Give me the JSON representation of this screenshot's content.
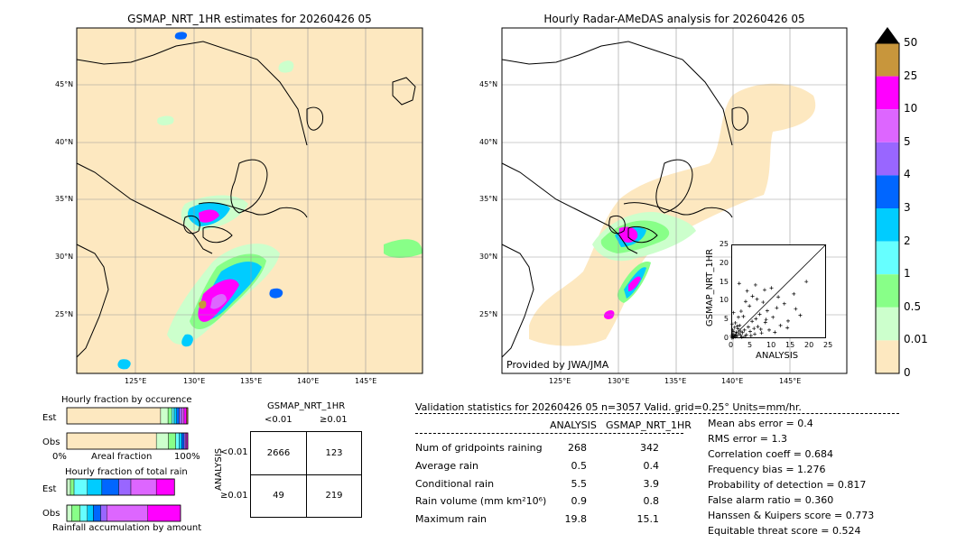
{
  "left_map": {
    "title": "GSMAP_NRT_1HR estimates for 20260426 05",
    "lat_labels": [
      "45°N",
      "40°N",
      "35°N",
      "30°N",
      "25°N"
    ],
    "lon_labels": [
      "125°E",
      "130°E",
      "135°E",
      "140°E",
      "145°E"
    ]
  },
  "right_map": {
    "title": "Hourly Radar-AMeDAS analysis for 20260426 05",
    "lat_labels": [
      "45°N",
      "40°N",
      "35°N",
      "30°N",
      "25°N"
    ],
    "lon_labels": [
      "125°E",
      "130°E",
      "135°E",
      "140°E",
      "145°E"
    ],
    "credit": "Provided by JWA/JMA"
  },
  "colorbar": {
    "labels": [
      "50",
      "25",
      "10",
      "5",
      "4",
      "3",
      "2",
      "1",
      "0.5",
      "0.01",
      "0"
    ],
    "colors": [
      "#c8963c",
      "#ff00ff",
      "#dd66ff",
      "#9966ff",
      "#0066ff",
      "#00ccff",
      "#66ffff",
      "#88ff88",
      "#ccffcc",
      "#fde8c0"
    ]
  },
  "chart_data": [
    {
      "type": "scatter",
      "xlabel": "ANALYSIS",
      "ylabel": "GSMAP_NRT_1HR",
      "xlim": [
        0,
        25
      ],
      "ylim": [
        0,
        25
      ],
      "xticks": [
        "0",
        "5",
        "10",
        "15",
        "20",
        "25"
      ],
      "yticks": [
        "0",
        "5",
        "10",
        "15",
        "20",
        "25"
      ],
      "points": [
        [
          0.2,
          0.1
        ],
        [
          0.4,
          0.3
        ],
        [
          0.6,
          0.2
        ],
        [
          0.8,
          0.5
        ],
        [
          1.0,
          0.4
        ],
        [
          1.2,
          0.9
        ],
        [
          0.3,
          1.1
        ],
        [
          0.5,
          1.8
        ],
        [
          1.5,
          0.6
        ],
        [
          2.0,
          1.2
        ],
        [
          2.5,
          0.8
        ],
        [
          1.8,
          2.5
        ],
        [
          3.0,
          1.5
        ],
        [
          3.5,
          2.2
        ],
        [
          4.0,
          0.9
        ],
        [
          2.2,
          3.4
        ],
        [
          1.1,
          4.1
        ],
        [
          4.5,
          3.0
        ],
        [
          5.0,
          1.8
        ],
        [
          5.5,
          4.5
        ],
        [
          6.0,
          2.6
        ],
        [
          3.2,
          5.8
        ],
        [
          2.6,
          7.2
        ],
        [
          6.5,
          5.2
        ],
        [
          7.0,
          3.1
        ],
        [
          7.5,
          6.4
        ],
        [
          8.0,
          1.4
        ],
        [
          4.8,
          8.6
        ],
        [
          3.8,
          9.8
        ],
        [
          9.0,
          4.2
        ],
        [
          9.5,
          7.3
        ],
        [
          10.0,
          2.2
        ],
        [
          5.6,
          11.2
        ],
        [
          6.8,
          10.4
        ],
        [
          11.0,
          5.6
        ],
        [
          12.0,
          8.1
        ],
        [
          4.2,
          12.6
        ],
        [
          13.0,
          3.4
        ],
        [
          8.8,
          12.9
        ],
        [
          14.0,
          9.2
        ],
        [
          15.0,
          4.6
        ],
        [
          16.5,
          11.8
        ],
        [
          17.0,
          7.8
        ],
        [
          18.2,
          6.1
        ],
        [
          19.8,
          15.1
        ],
        [
          0.1,
          0.6
        ],
        [
          0.7,
          0.9
        ],
        [
          1.3,
          1.6
        ],
        [
          2.8,
          0.3
        ],
        [
          0.9,
          2.9
        ],
        [
          3.6,
          0.5
        ],
        [
          2.4,
          1.9
        ],
        [
          1.6,
          3.2
        ],
        [
          0.4,
          2.2
        ],
        [
          5.2,
          0.7
        ],
        [
          6.2,
          1.1
        ],
        [
          0.2,
          3.8
        ],
        [
          7.8,
          2.4
        ],
        [
          11.5,
          1.6
        ],
        [
          8.4,
          9.6
        ],
        [
          10.6,
          13.4
        ],
        [
          2.1,
          14.6
        ],
        [
          6.4,
          14.2
        ],
        [
          12.4,
          11.0
        ],
        [
          9.2,
          5.0
        ],
        [
          1.9,
          5.6
        ],
        [
          0.6,
          6.8
        ],
        [
          14.8,
          2.8
        ]
      ]
    },
    {
      "type": "bar",
      "title": "Hourly fraction by occurence",
      "categories": [
        "Est",
        "Obs"
      ],
      "xlabel": "Areal fraction",
      "x_tick_labels": [
        "0%",
        "100%"
      ],
      "est_segments": [
        {
          "color": "#fde8c0",
          "value": 0.76
        },
        {
          "color": "#ccffcc",
          "value": 0.06
        },
        {
          "color": "#88ff88",
          "value": 0.03
        },
        {
          "color": "#66ffff",
          "value": 0.02
        },
        {
          "color": "#00ccff",
          "value": 0.02
        },
        {
          "color": "#0066ff",
          "value": 0.02
        },
        {
          "color": "#9966ff",
          "value": 0.02
        },
        {
          "color": "#dd66ff",
          "value": 0.02
        },
        {
          "color": "#ff00ff",
          "value": 0.02
        },
        {
          "color": "#c8963c",
          "value": 0.01
        }
      ],
      "obs_segments": [
        {
          "color": "#fde8c0",
          "value": 0.74
        },
        {
          "color": "#ccffcc",
          "value": 0.1
        },
        {
          "color": "#88ff88",
          "value": 0.06
        },
        {
          "color": "#66ffff",
          "value": 0.03
        },
        {
          "color": "#00ccff",
          "value": 0.02
        },
        {
          "color": "#0066ff",
          "value": 0.02
        },
        {
          "color": "#9966ff",
          "value": 0.01
        },
        {
          "color": "#dd66ff",
          "value": 0.01
        },
        {
          "color": "#ff00ff",
          "value": 0.01
        }
      ]
    },
    {
      "type": "bar",
      "title": "Hourly fraction of total rain",
      "categories": [
        "Est",
        "Obs"
      ],
      "xlabel": "Rainfall accumulation by amount",
      "est_segments": [
        {
          "color": "#ccffcc",
          "value": 0.03
        },
        {
          "color": "#88ff88",
          "value": 0.03
        },
        {
          "color": "#66ffff",
          "value": 0.11
        },
        {
          "color": "#00ccff",
          "value": 0.12
        },
        {
          "color": "#0066ff",
          "value": 0.14
        },
        {
          "color": "#9966ff",
          "value": 0.1
        },
        {
          "color": "#dd66ff",
          "value": 0.21
        },
        {
          "color": "#ff00ff",
          "value": 0.15
        }
      ],
      "obs_segments": [
        {
          "color": "#ccffcc",
          "value": 0.04
        },
        {
          "color": "#88ff88",
          "value": 0.07
        },
        {
          "color": "#66ffff",
          "value": 0.06
        },
        {
          "color": "#00ccff",
          "value": 0.05
        },
        {
          "color": "#0066ff",
          "value": 0.06
        },
        {
          "color": "#9966ff",
          "value": 0.05
        },
        {
          "color": "#dd66ff",
          "value": 0.34
        },
        {
          "color": "#ff00ff",
          "value": 0.27
        }
      ]
    }
  ],
  "contingency": {
    "title": "GSMAP_NRT_1HR",
    "col_labels": [
      "<0.01",
      "≥0.01"
    ],
    "row_axis_label": "ANALYSIS",
    "row_labels": [
      "<0.01",
      "≥0.01"
    ],
    "cells": [
      [
        "2666",
        "123"
      ],
      [
        "49",
        "219"
      ]
    ]
  },
  "validation": {
    "header": "Validation statistics for 20260426 05  n=3057 Valid. grid=0.25° Units=mm/hr.",
    "col_analysis": "ANALYSIS",
    "col_gsmap": "GSMAP_NRT_1HR",
    "rows": [
      {
        "label": "Num of gridpoints raining",
        "analysis": "268",
        "gsmap": "342"
      },
      {
        "label": "Average rain",
        "analysis": "0.5",
        "gsmap": "0.4"
      },
      {
        "label": "Conditional rain",
        "analysis": "5.5",
        "gsmap": "3.9"
      },
      {
        "label": "Rain volume (mm km²10⁶)",
        "analysis": "0.9",
        "gsmap": "0.8"
      },
      {
        "label": "Maximum rain",
        "analysis": "19.8",
        "gsmap": "15.1"
      }
    ],
    "scores": [
      "Mean abs error =    0.4",
      "RMS error =    1.3",
      "Correlation coeff =  0.684",
      "Frequency bias =  1.276",
      "Probability of detection =  0.817",
      "False alarm ratio =  0.360",
      "Hanssen & Kuipers score =  0.773",
      "Equitable threat score =  0.524"
    ]
  }
}
